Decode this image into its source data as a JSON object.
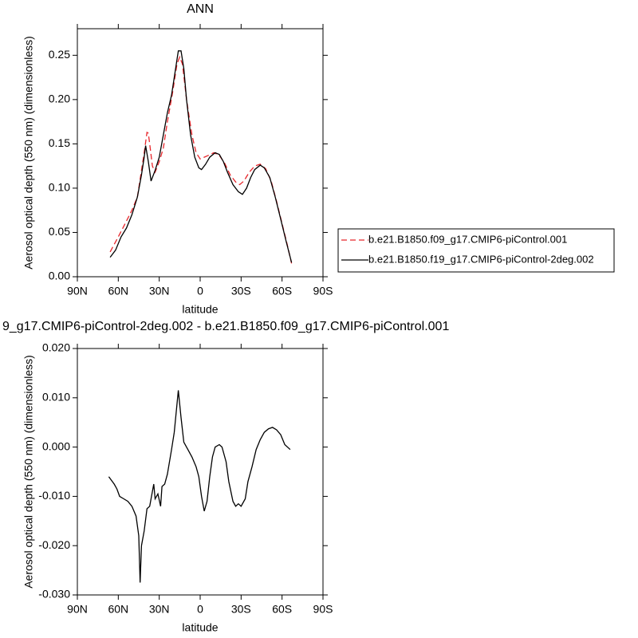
{
  "chart_data": [
    {
      "type": "line",
      "title": "ANN",
      "x_label": "latitude",
      "y_label": "Aerosol optical depth (550 nm) (dimensionless)",
      "xlim": [
        90,
        -90
      ],
      "xticks": [
        {
          "value": 90,
          "label": "90N"
        },
        {
          "value": 60,
          "label": "60N"
        },
        {
          "value": 30,
          "label": "30N"
        },
        0,
        {
          "value": -30,
          "label": "30S"
        },
        {
          "value": -60,
          "label": "60S"
        },
        {
          "value": -90,
          "label": "90S"
        }
      ],
      "ylim": [
        0,
        0.28
      ],
      "yticks": [
        {
          "value": 0,
          "label": "0.00"
        },
        0.05,
        {
          "value": 0.1,
          "label": "0.10"
        },
        0.15,
        {
          "value": 0.2,
          "label": "0.20"
        },
        0.25
      ],
      "legend": "right",
      "series": [
        {
          "name": "b.e21.B1850.f09_g17.CMIP6-piControl.001",
          "color": "#e8262b",
          "dash": "dashed",
          "x": [
            66,
            60,
            55,
            50,
            46,
            43,
            41,
            39,
            38,
            37,
            35,
            33,
            30,
            27,
            24,
            20,
            17,
            15,
            13,
            10,
            6,
            3,
            0,
            -3,
            -6,
            -10,
            -14,
            -18,
            -22,
            -26,
            -29,
            -32,
            -36,
            -40,
            -44,
            -48,
            -52,
            -56,
            -60,
            -64,
            -67
          ],
          "values": [
            0.028,
            0.045,
            0.06,
            0.075,
            0.09,
            0.12,
            0.14,
            0.163,
            0.162,
            0.15,
            0.125,
            0.118,
            0.13,
            0.145,
            0.175,
            0.21,
            0.24,
            0.248,
            0.24,
            0.2,
            0.16,
            0.14,
            0.133,
            0.135,
            0.137,
            0.14,
            0.137,
            0.128,
            0.115,
            0.107,
            0.104,
            0.108,
            0.118,
            0.125,
            0.127,
            0.122,
            0.108,
            0.085,
            0.06,
            0.035,
            0.015
          ]
        },
        {
          "name": "b.e21.B1850.f19_g17.CMIP6-piControl-2deg.002",
          "color": "#000000",
          "dash": "solid",
          "x": [
            66,
            62,
            58,
            54,
            50,
            46,
            43,
            41,
            40,
            38,
            36,
            33,
            30,
            27,
            24,
            21,
            18,
            16,
            14,
            12,
            10,
            7,
            4,
            1,
            -1,
            -4,
            -7,
            -11,
            -14,
            -17,
            -20,
            -24,
            -28,
            -31,
            -34,
            -37,
            -40,
            -44,
            -47,
            -51,
            -55,
            -59,
            -63,
            -67
          ],
          "values": [
            0.022,
            0.03,
            0.045,
            0.055,
            0.07,
            0.09,
            0.115,
            0.135,
            0.148,
            0.13,
            0.108,
            0.12,
            0.135,
            0.16,
            0.185,
            0.205,
            0.235,
            0.255,
            0.255,
            0.235,
            0.2,
            0.16,
            0.135,
            0.123,
            0.121,
            0.127,
            0.135,
            0.14,
            0.138,
            0.13,
            0.118,
            0.104,
            0.096,
            0.093,
            0.1,
            0.112,
            0.121,
            0.126,
            0.123,
            0.112,
            0.09,
            0.065,
            0.04,
            0.016
          ]
        }
      ]
    },
    {
      "type": "line",
      "title": "9_g17.CMIP6-piControl-2deg.002 - b.e21.B1850.f09_g17.CMIP6-piControl.001",
      "x_label": "latitude",
      "y_label": "Aerosol optical depth (550 nm) (dimensionless)",
      "xlim": [
        90,
        -90
      ],
      "xticks": [
        {
          "value": 90,
          "label": "90N"
        },
        {
          "value": 60,
          "label": "60N"
        },
        {
          "value": 30,
          "label": "30N"
        },
        0,
        {
          "value": -30,
          "label": "30S"
        },
        {
          "value": -60,
          "label": "60S"
        },
        {
          "value": -90,
          "label": "90S"
        }
      ],
      "ylim": [
        -0.03,
        0.02
      ],
      "yticks": [
        {
          "value": -0.03,
          "label": "-0.030"
        },
        {
          "value": -0.02,
          "label": "-0.020"
        },
        {
          "value": -0.01,
          "label": "-0.010"
        },
        {
          "value": 0,
          "label": "0.000"
        },
        {
          "value": 0.01,
          "label": "0.010"
        },
        {
          "value": 0.02,
          "label": "0.020"
        }
      ],
      "series": [
        {
          "color": "#000000",
          "dash": "solid",
          "x": [
            67,
            63,
            61,
            59,
            56,
            53,
            50,
            47,
            45,
            44,
            43,
            41,
            39,
            37,
            35,
            34,
            33,
            31,
            29,
            28,
            26,
            24,
            21,
            19,
            16,
            14,
            12,
            9,
            6,
            3,
            1,
            -1,
            -3,
            -5,
            -7,
            -9,
            -11,
            -14,
            -16,
            -19,
            -21,
            -24,
            -26,
            -28,
            -30,
            -33,
            -35,
            -38,
            -41,
            -44,
            -47,
            -50,
            -53,
            -56,
            -59,
            -62,
            -66
          ],
          "values": [
            -0.006,
            -0.0075,
            -0.0085,
            -0.01,
            -0.0105,
            -0.011,
            -0.012,
            -0.014,
            -0.018,
            -0.0275,
            -0.02,
            -0.017,
            -0.0125,
            -0.012,
            -0.009,
            -0.0075,
            -0.0105,
            -0.0095,
            -0.012,
            -0.008,
            -0.0075,
            -0.0055,
            -0.0005,
            0.003,
            0.0115,
            0.006,
            0.001,
            -0.0005,
            -0.002,
            -0.004,
            -0.006,
            -0.01,
            -0.013,
            -0.011,
            -0.006,
            -0.002,
            0,
            0.0005,
            0,
            -0.003,
            -0.007,
            -0.011,
            -0.012,
            -0.0115,
            -0.012,
            -0.0105,
            -0.007,
            -0.004,
            -0.0005,
            0.0015,
            0.003,
            0.0037,
            0.004,
            0.0035,
            0.0025,
            0.0005,
            -0.0005
          ]
        }
      ]
    }
  ]
}
